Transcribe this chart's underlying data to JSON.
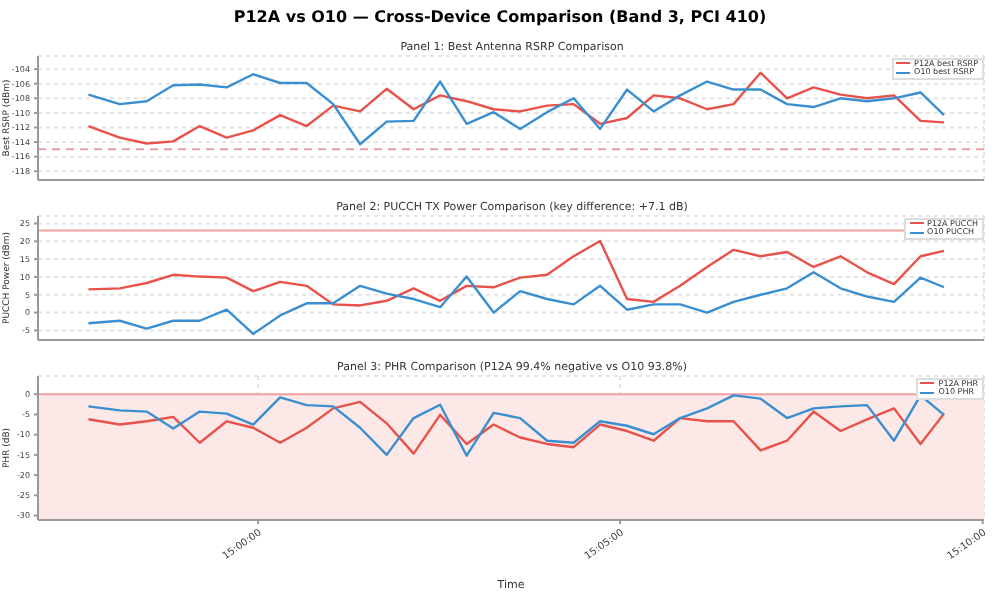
{
  "chart_data": [
    {
      "type": "line",
      "title": "P12A vs O10 — Cross-Device Comparison (Band 3, PCI 410)",
      "subtitle": "Panel 1: Best Antenna RSRP Comparison",
      "ylabel": "Best RSRP (dBm)",
      "x": [
        14.961,
        14.9682,
        14.9744,
        14.9805,
        14.9866,
        14.9928,
        14.9989,
        15.0051,
        15.0112,
        15.0173,
        15.0235,
        15.0296,
        15.0358,
        15.0419,
        15.048,
        15.0542,
        15.0603,
        15.0665,
        15.0726,
        15.0787,
        15.0849,
        15.091,
        15.0971,
        15.1033,
        15.1094,
        15.1156,
        15.1217,
        15.1278,
        15.134,
        15.1401,
        15.1463,
        15.1524,
        15.1578
      ],
      "series": [
        {
          "name": "P12A best RSRP",
          "color": "#e8524a",
          "values": [
            -111.8,
            -113.4,
            -114.2,
            -113.9,
            -111.8,
            -113.4,
            -112.4,
            -110.3,
            -111.8,
            -109,
            -109.8,
            -106.7,
            -109.5,
            -107.6,
            -108.4,
            -109.5,
            -109.8,
            -109,
            -108.8,
            -111.5,
            -110.7,
            -107.6,
            -108,
            -109.5,
            -108.8,
            -104.5,
            -108,
            -106.5,
            -107.5,
            -108,
            -107.6,
            -111.1,
            -111.3
          ]
        },
        {
          "name": "O10 best RSRP",
          "color": "#3a8fd0",
          "values": [
            -107.5,
            -108.8,
            -108.4,
            -106.2,
            -106.1,
            -106.5,
            -104.7,
            -105.9,
            -105.9,
            -108.8,
            -114.3,
            -111.2,
            -111.1,
            -105.7,
            -111.5,
            -109.9,
            -112.2,
            -109.9,
            -108,
            -112.2,
            -106.8,
            -109.8,
            -107.6,
            -105.7,
            -106.8,
            -106.8,
            -108.8,
            -109.2,
            -108,
            -108.4,
            -108,
            -107.2,
            -110.3
          ]
        }
      ],
      "xlim": [
        14.9494,
        15.167
      ],
      "ylim": [
        -119.2,
        -102.2
      ],
      "yticks": [
        -104,
        -106,
        -108,
        -110,
        -112,
        -114,
        -116,
        -118
      ],
      "xticks": [
        {
          "value": 15,
          "label": null
        },
        {
          "value": 15.0833,
          "label": null
        },
        {
          "value": 15.1667,
          "label": null
        }
      ],
      "ref_lines": [
        {
          "axis": "y",
          "value": -115,
          "color": "#e8a0a0",
          "line_style": "dashed"
        }
      ],
      "tick_labels": "y",
      "grid": true,
      "legend": "top right",
      "marker": "none",
      "line_style": "solid"
    },
    {
      "type": "line",
      "subtitle": "Panel 2: PUCCH TX Power Comparison (key difference: +7.1 dB)",
      "ylabel": "PUCCH Power (dBm)",
      "x": [
        14.961,
        14.9682,
        14.9744,
        14.9805,
        14.9866,
        14.9928,
        14.9989,
        15.0051,
        15.0112,
        15.0173,
        15.0235,
        15.0296,
        15.0358,
        15.0419,
        15.048,
        15.0542,
        15.0603,
        15.0665,
        15.0726,
        15.0787,
        15.0849,
        15.091,
        15.0971,
        15.1033,
        15.1094,
        15.1156,
        15.1217,
        15.1278,
        15.134,
        15.1401,
        15.1463,
        15.1524,
        15.1578
      ],
      "series": [
        {
          "name": "P12A PUCCH",
          "color": "#e8524a",
          "values": [
            6.5,
            6.8,
            8.3,
            10.6,
            10.1,
            9.8,
            6,
            8.6,
            7.5,
            2.3,
            2,
            3.3,
            6.8,
            3.3,
            7.5,
            7.1,
            9.8,
            10.6,
            15.8,
            20.1,
            3.8,
            3,
            7.5,
            12.8,
            17.6,
            15.8,
            17,
            12.8,
            15.8,
            11.3,
            8,
            15.8,
            17.3
          ]
        },
        {
          "name": "O10 PUCCH",
          "color": "#3a8fd0",
          "values": [
            -3,
            -2.3,
            -4.5,
            -2.3,
            -2.3,
            0.8,
            -6,
            -0.8,
            2.6,
            2.6,
            7.5,
            5.3,
            3.8,
            1.5,
            10.1,
            0,
            6,
            3.8,
            2.3,
            7.5,
            0.8,
            2.3,
            2.3,
            0,
            3,
            5,
            6.8,
            11.3,
            6.8,
            4.5,
            3,
            9.8,
            7.1
          ]
        }
      ],
      "xlim": [
        14.9494,
        15.167
      ],
      "ylim": [
        -7.7,
        27.1
      ],
      "yticks": [
        -5,
        0,
        5,
        10,
        15,
        20,
        25
      ],
      "xticks": [
        {
          "value": 15,
          "label": null
        },
        {
          "value": 15.0833,
          "label": null
        },
        {
          "value": 15.1667,
          "label": null
        }
      ],
      "ref_lines": [
        {
          "axis": "y",
          "value": 23,
          "color": "#f4a0a0",
          "line_style": "solid"
        }
      ],
      "tick_labels": "y",
      "grid": true,
      "legend": "top right",
      "marker": "none",
      "line_style": "solid"
    },
    {
      "type": "line",
      "subtitle": "Panel 3: PHR Comparison (P12A 99.4% negative vs O10 93.8%)",
      "xlabel": "Time",
      "ylabel": "PHR (dB)",
      "x": [
        14.961,
        14.9682,
        14.9744,
        14.9805,
        14.9866,
        14.9928,
        14.9989,
        15.0051,
        15.0112,
        15.0173,
        15.0235,
        15.0296,
        15.0358,
        15.0419,
        15.048,
        15.0542,
        15.0603,
        15.0665,
        15.0726,
        15.0787,
        15.0849,
        15.091,
        15.0971,
        15.1033,
        15.1094,
        15.1156,
        15.1217,
        15.1278,
        15.134,
        15.1401,
        15.1463,
        15.1524,
        15.1578
      ],
      "series": [
        {
          "name": "P12A PHR",
          "color": "#e8524a",
          "values": [
            -6.2,
            -7.5,
            -6.7,
            -5.6,
            -12,
            -6.7,
            -8.3,
            -12,
            -8.3,
            -3.5,
            -1.9,
            -7.2,
            -14.7,
            -5.1,
            -12.3,
            -7.5,
            -10.7,
            -12.3,
            -13.1,
            -7.5,
            -9.1,
            -11.5,
            -5.9,
            -6.7,
            -6.7,
            -13.9,
            -11.5,
            -4.3,
            -9.1,
            -6.2,
            -3.5,
            -12.3,
            -4.8
          ]
        },
        {
          "name": "O10 PHR",
          "color": "#3a8fd0",
          "values": [
            -3,
            -4,
            -4.3,
            -8.5,
            -4.3,
            -4.8,
            -7.5,
            -0.8,
            -2.7,
            -3,
            -8.3,
            -15,
            -5.9,
            -2.6,
            -15.2,
            -4.6,
            -5.9,
            -11.5,
            -12,
            -6.7,
            -7.8,
            -9.9,
            -5.9,
            -3.5,
            -0.3,
            -1.1,
            -5.9,
            -3.5,
            -3,
            -2.7,
            -11.5,
            -0.3,
            -5.1
          ]
        }
      ],
      "xlim": [
        14.9494,
        15.167
      ],
      "xticks": [
        {
          "value": 15,
          "label": "15:00:00"
        },
        {
          "value": 15.0833,
          "label": "15:05:00"
        },
        {
          "value": 15.1667,
          "label": "15:10:00"
        }
      ],
      "ylim": [
        -31.1,
        4.5
      ],
      "yticks": [
        0,
        -5,
        -10,
        -15,
        -20,
        -25,
        -30
      ],
      "ref_lines": [
        {
          "axis": "y",
          "value": 0,
          "color": "#f4a0a0",
          "line_style": "solid"
        }
      ],
      "bands": [
        {
          "axis": "y",
          "from": -31.1,
          "to": 0,
          "color": "#fde8e8"
        }
      ],
      "grid": true,
      "legend": "top right",
      "marker": "none",
      "line_style": "solid"
    }
  ]
}
